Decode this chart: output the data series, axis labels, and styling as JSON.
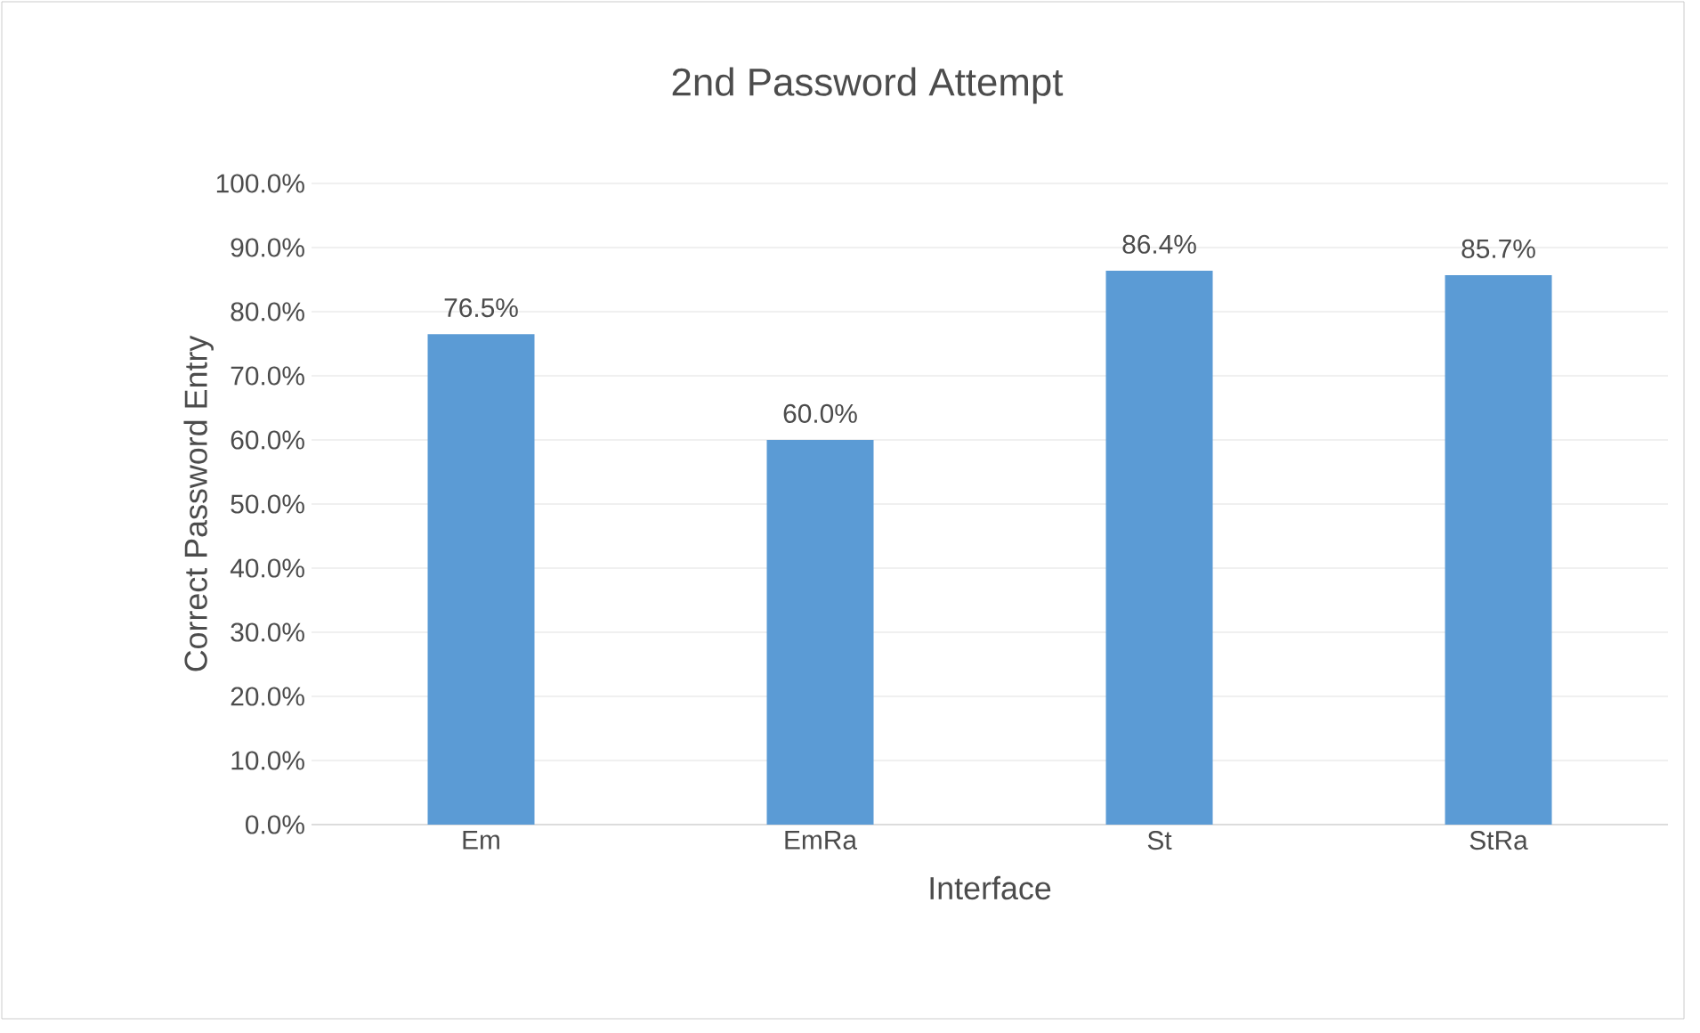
{
  "chart_data": {
    "type": "bar",
    "title": "2nd Password Attempt",
    "xlabel": "Interface",
    "ylabel": "Correct Password Entry",
    "categories": [
      "Em",
      "EmRa",
      "St",
      "StRa"
    ],
    "values": [
      76.5,
      60.0,
      86.4,
      85.7
    ],
    "value_labels": [
      "76.5%",
      "60.0%",
      "86.4%",
      "85.7%"
    ],
    "color": "#5b9bd5",
    "ylim": [
      0,
      100
    ],
    "yticks": [
      {
        "value": 0,
        "label": "0.0%"
      },
      {
        "value": 10,
        "label": "10.0%"
      },
      {
        "value": 20,
        "label": "20.0%"
      },
      {
        "value": 30,
        "label": "30.0%"
      },
      {
        "value": 40,
        "label": "40.0%"
      },
      {
        "value": 50,
        "label": "50.0%"
      },
      {
        "value": 60,
        "label": "60.0%"
      },
      {
        "value": 70,
        "label": "70.0%"
      },
      {
        "value": 80,
        "label": "80.0%"
      },
      {
        "value": 90,
        "label": "90.0%"
      },
      {
        "value": 100,
        "label": "100.0%"
      }
    ],
    "grid": "y"
  }
}
